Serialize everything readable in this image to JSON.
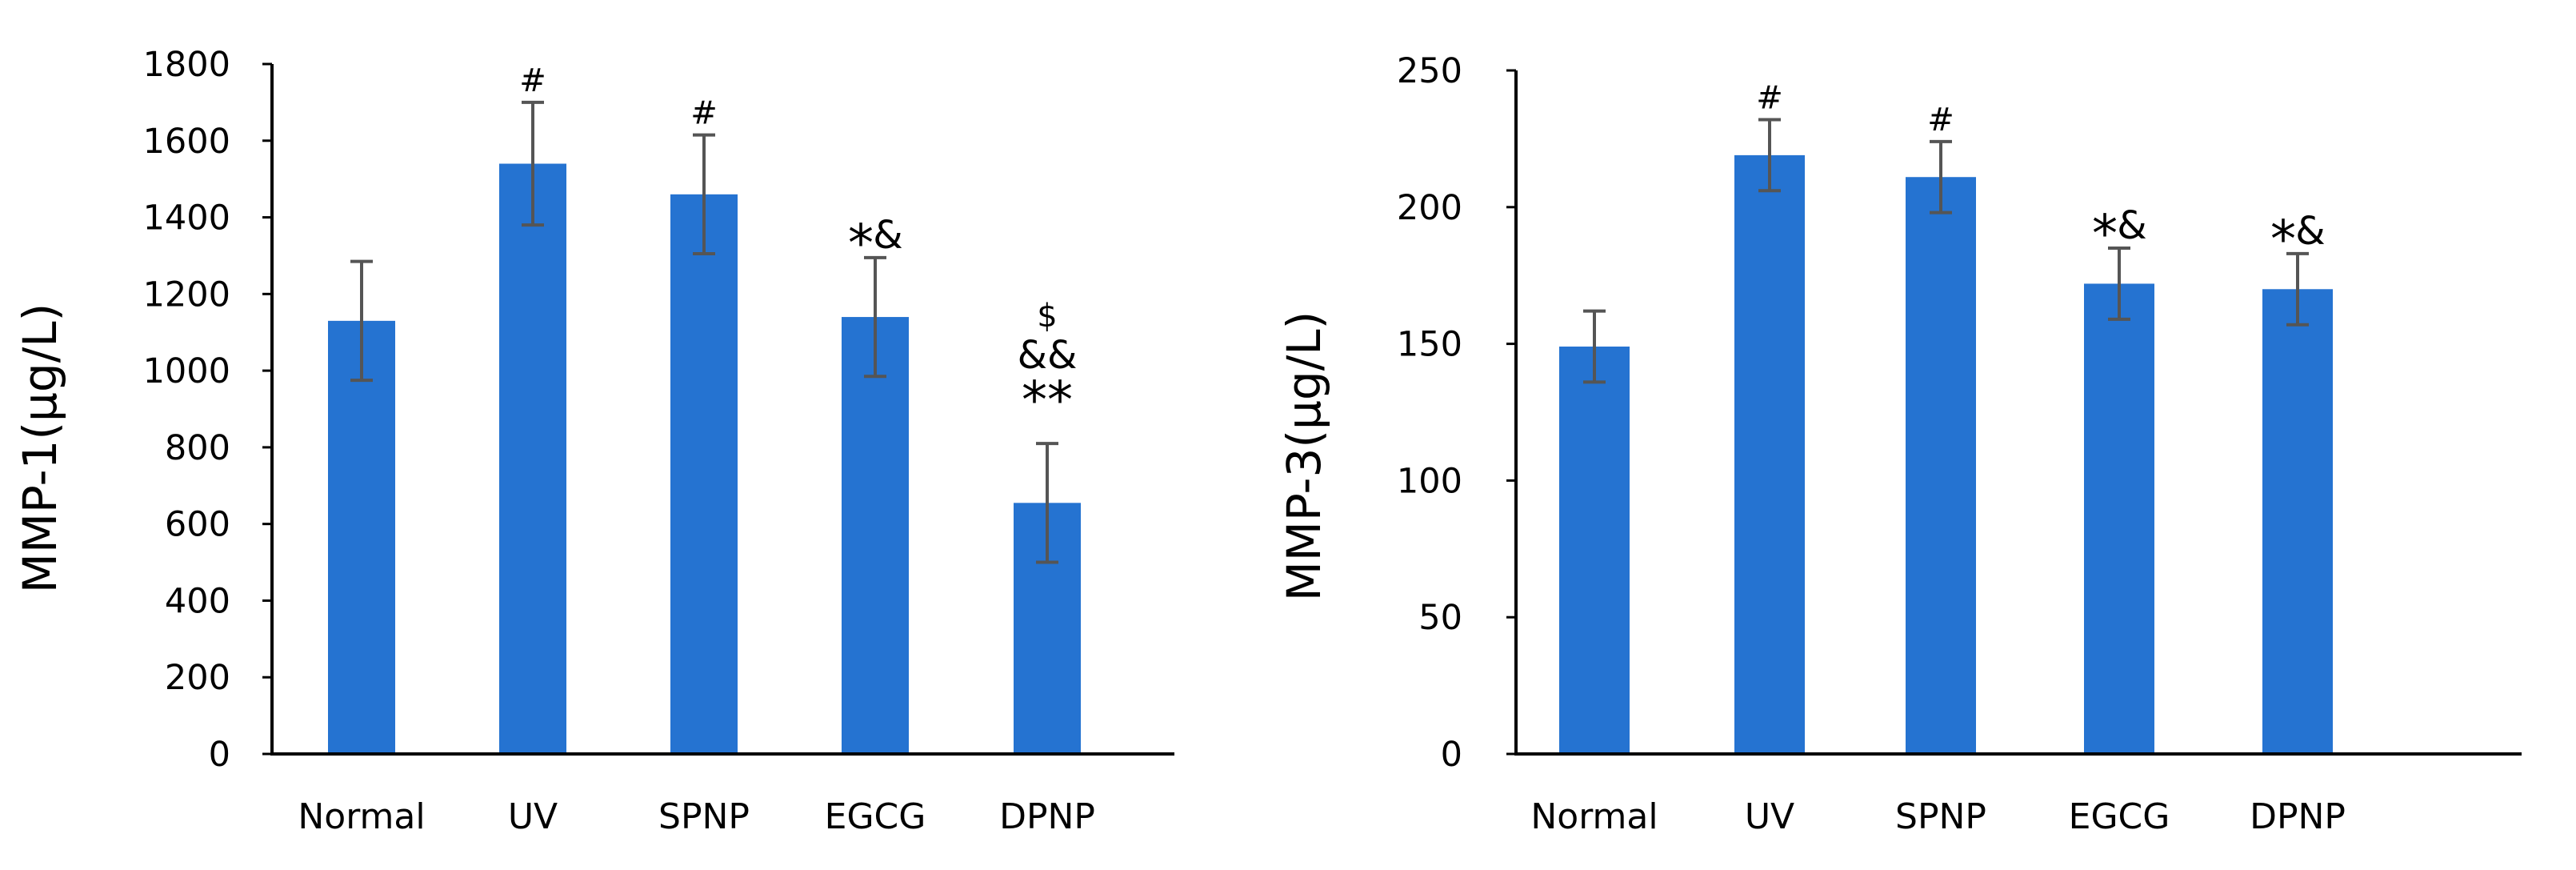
{
  "colors": {
    "bar": "#2573D1",
    "error": "#555555",
    "axis": "#000000"
  },
  "chart_data": [
    {
      "type": "bar",
      "title": "",
      "xlabel": "",
      "ylabel": "MMP-1(μg/L)",
      "ylim": [
        0,
        1800
      ],
      "yticks": [
        0,
        200,
        400,
        600,
        800,
        1000,
        1200,
        1400,
        1600,
        1800
      ],
      "grid": false,
      "categories": [
        "Normal",
        "UV",
        "SPNP",
        "EGCG",
        "DPNP"
      ],
      "values": [
        1130,
        1540,
        1460,
        1140,
        655
      ],
      "errors": [
        155,
        160,
        155,
        155,
        155
      ],
      "annotations": [
        [],
        [
          {
            "text": "#",
            "size": "small"
          }
        ],
        [
          {
            "text": "#",
            "size": "small"
          }
        ],
        [
          {
            "text": "*",
            "size": "large"
          },
          {
            "text": "&",
            "size": "mid"
          }
        ],
        [
          {
            "text": "$",
            "size": "small"
          },
          {
            "text": "&&",
            "size": "mid"
          },
          {
            "text": "**",
            "size": "large"
          }
        ]
      ]
    },
    {
      "type": "bar",
      "title": "",
      "xlabel": "",
      "ylabel": "MMP-3(μg/L)",
      "ylim": [
        0,
        250
      ],
      "yticks": [
        0,
        50,
        100,
        150,
        200,
        250
      ],
      "grid": false,
      "categories": [
        "Normal",
        "UV",
        "SPNP",
        "EGCG",
        "DPNP"
      ],
      "values": [
        149,
        219,
        211,
        172,
        170
      ],
      "errors": [
        13,
        13,
        13,
        13,
        13
      ],
      "annotations": [
        [],
        [
          {
            "text": "#",
            "size": "small"
          }
        ],
        [
          {
            "text": "#",
            "size": "small"
          }
        ],
        [
          {
            "text": "*",
            "size": "large"
          },
          {
            "text": "&",
            "size": "mid"
          }
        ],
        [
          {
            "text": "*",
            "size": "large"
          },
          {
            "text": "&",
            "size": "mid"
          }
        ]
      ]
    }
  ]
}
